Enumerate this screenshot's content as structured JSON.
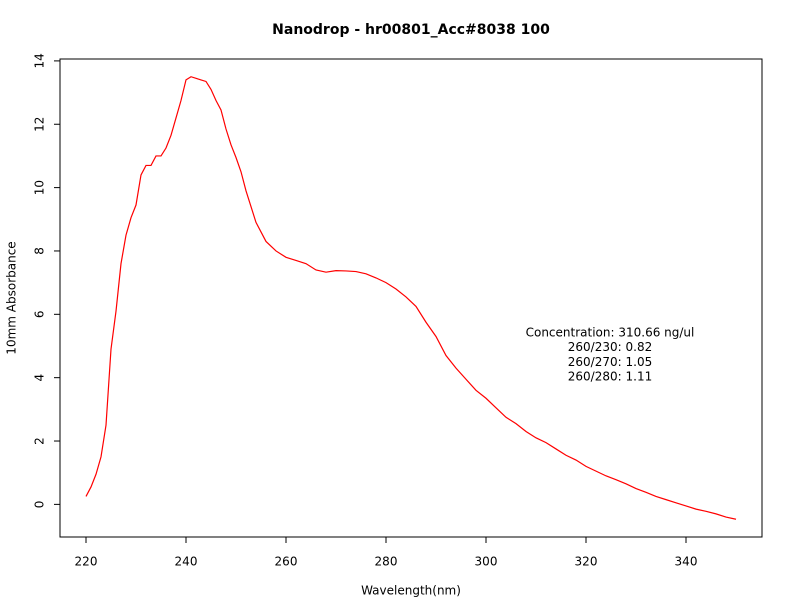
{
  "chart_data": {
    "type": "line",
    "title": "Nanodrop - hr00801_Acc#8038 100",
    "x_label": "Wavelength(nm)",
    "y_label": "10mm Absorbance",
    "annotation": [
      "Concentration: 310.66 ng/ul",
      "260/230: 0.82",
      "260/270: 1.05",
      "260/280: 1.11"
    ],
    "x": [
      220,
      221,
      222,
      223,
      224,
      225,
      226,
      227,
      228,
      229,
      230,
      231,
      232,
      233,
      234,
      235,
      236,
      237,
      238,
      239,
      240,
      241,
      242,
      243,
      244,
      245,
      246,
      247,
      248,
      249,
      250,
      251,
      252,
      254,
      256,
      258,
      260,
      262,
      264,
      266,
      268,
      270,
      272,
      274,
      276,
      278,
      280,
      282,
      284,
      286,
      288,
      290,
      292,
      294,
      296,
      298,
      300,
      302,
      304,
      306,
      308,
      310,
      312,
      314,
      316,
      318,
      320,
      322,
      324,
      326,
      328,
      330,
      332,
      334,
      336,
      338,
      340,
      342,
      344,
      346,
      348,
      350
    ],
    "series": [
      {
        "name": "Absorbance",
        "color": "#ff0000",
        "values": [
          0.25,
          0.55,
          0.95,
          1.5,
          2.5,
          4.9,
          6.1,
          7.6,
          8.5,
          9.05,
          9.45,
          10.4,
          10.7,
          10.7,
          11.0,
          11.0,
          11.25,
          11.65,
          12.2,
          12.75,
          13.4,
          13.5,
          13.45,
          13.4,
          13.35,
          13.1,
          12.75,
          12.45,
          11.85,
          11.35,
          10.95,
          10.5,
          9.9,
          8.9,
          8.3,
          8.0,
          7.8,
          7.7,
          7.6,
          7.4,
          7.33,
          7.38,
          7.37,
          7.35,
          7.28,
          7.15,
          7.0,
          6.8,
          6.55,
          6.25,
          5.75,
          5.3,
          4.7,
          4.3,
          3.95,
          3.6,
          3.35,
          3.05,
          2.75,
          2.55,
          2.3,
          2.1,
          1.95,
          1.75,
          1.55,
          1.4,
          1.2,
          1.05,
          0.9,
          0.78,
          0.65,
          0.5,
          0.38,
          0.25,
          0.15,
          0.05,
          -0.05,
          -0.15,
          -0.22,
          -0.3,
          -0.4,
          -0.47
        ]
      }
    ],
    "xlim": [
      214.8,
      355.2
    ],
    "ylim": [
      -1.03,
      14.06
    ],
    "xticks": [
      220,
      240,
      260,
      280,
      300,
      320,
      340
    ],
    "yticks": [
      0,
      2,
      4,
      6,
      8,
      10,
      12,
      14
    ]
  }
}
